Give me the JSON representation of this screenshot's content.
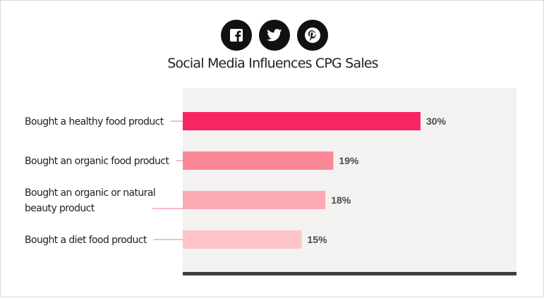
{
  "social": [
    {
      "name": "facebook",
      "glyph": "f"
    },
    {
      "name": "twitter",
      "glyph": "t"
    },
    {
      "name": "pinterest",
      "glyph": "p"
    }
  ],
  "chart_data": {
    "type": "bar",
    "orientation": "horizontal",
    "title": "Social Media Influences CPG Sales",
    "xlabel": "",
    "ylabel": "",
    "xlim": [
      0,
      45
    ],
    "grid": false,
    "categories": [
      [
        "Bought a healthy food product"
      ],
      [
        "Bought an organic food product"
      ],
      [
        "Bought an organic or natural",
        "beauty product"
      ],
      [
        "Bought a diet food product"
      ]
    ],
    "values": [
      30,
      19,
      18,
      15
    ],
    "value_labels": [
      "30%",
      "19%",
      "18%",
      "15%"
    ],
    "colors": [
      "#f72564",
      "#fa8796",
      "#fca9b4",
      "#fdc4ca"
    ],
    "plot_background": "#f3f2f1",
    "baseline_color": "#3f3f3f",
    "leader_line_color": "#f07a8e"
  }
}
